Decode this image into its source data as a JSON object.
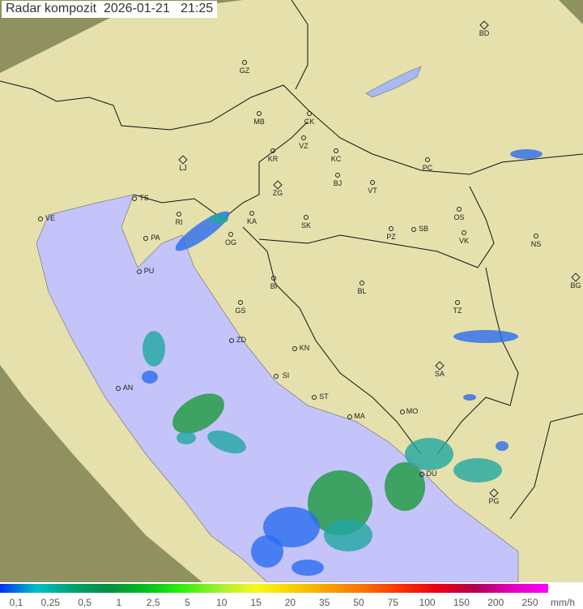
{
  "header": {
    "title": "Radar kompozit",
    "date": "2026-01-21",
    "time": "21:25"
  },
  "colors": {
    "sea": "#c4c4fa",
    "land": "#e8e2a8",
    "outside": "#9a9a62",
    "rain_light": "#2a6cf0",
    "rain_mid": "#20a8a0",
    "rain_heavy": "#1c9a3c"
  },
  "cities": [
    "GZ",
    "MB",
    "CK",
    "VZ",
    "KR",
    "KC",
    "LJ",
    "ZG",
    "BJ",
    "VT",
    "PC",
    "BD",
    "TS",
    "VE",
    "RI",
    "KA",
    "SK",
    "OS",
    "VK",
    "NS",
    "PZ",
    "SB",
    "PA",
    "OG",
    "PU",
    "BI",
    "BL",
    "BG",
    "GS",
    "TZ",
    "ZD",
    "KN",
    "SA",
    "SI",
    "AN",
    "ST",
    "MO",
    "MA",
    "DU",
    "PG"
  ],
  "capitals": [
    "LJ",
    "ZG",
    "BD",
    "BG",
    "SA",
    "PG"
  ],
  "legend": {
    "unit": "mm/h",
    "ticks": [
      "0,1",
      "0,25",
      "0,5",
      "1",
      "2,5",
      "5",
      "10",
      "15",
      "20",
      "35",
      "50",
      "75",
      "100",
      "150",
      "200",
      "250"
    ],
    "gradient": [
      "#0030f0",
      "#00c0c8",
      "#00a070",
      "#009040",
      "#00c020",
      "#30f010",
      "#a0f030",
      "#f8f820",
      "#f8d000",
      "#f8a000",
      "#f87000",
      "#f83000",
      "#e80010",
      "#b00050",
      "#e000c0",
      "#ff00ff"
    ]
  }
}
